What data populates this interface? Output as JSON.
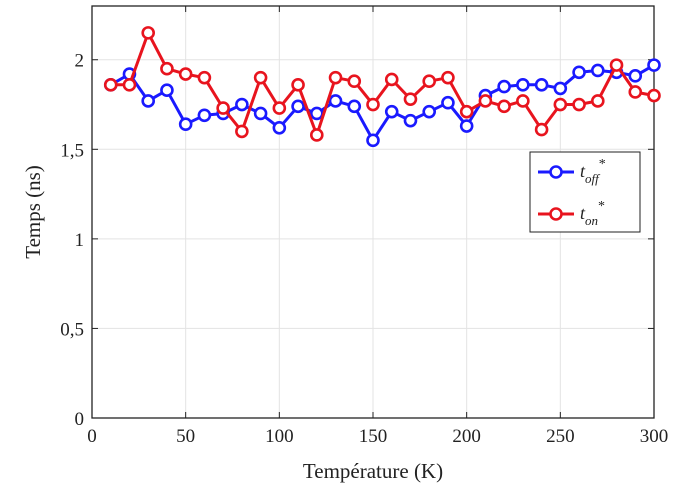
{
  "chart_data": {
    "type": "line",
    "title": "",
    "xlabel": "Température (K)",
    "ylabel": "Temps (ns)",
    "xlim": [
      0,
      300
    ],
    "ylim": [
      0,
      2.3
    ],
    "xticks": [
      0,
      50,
      100,
      150,
      200,
      250,
      300
    ],
    "xtick_labels": [
      "0",
      "50",
      "100",
      "150",
      "200",
      "250",
      "300"
    ],
    "yticks": [
      0,
      0.5,
      1,
      1.5,
      2
    ],
    "ytick_labels": [
      "0",
      "0,5",
      "1",
      "1,5",
      "2"
    ],
    "grid": true,
    "legend_position": "right",
    "x": [
      10,
      20,
      30,
      40,
      50,
      60,
      70,
      80,
      90,
      100,
      110,
      120,
      130,
      140,
      150,
      160,
      170,
      180,
      190,
      200,
      210,
      220,
      230,
      240,
      250,
      260,
      270,
      280,
      290,
      300
    ],
    "series": [
      {
        "key": "off",
        "legend_main": "t",
        "legend_sub": "off",
        "legend_sup": "*",
        "color": "#1a1aff",
        "values": [
          1.86,
          1.92,
          1.77,
          1.83,
          1.64,
          1.69,
          1.7,
          1.75,
          1.7,
          1.62,
          1.74,
          1.7,
          1.77,
          1.74,
          1.55,
          1.71,
          1.66,
          1.71,
          1.76,
          1.63,
          1.8,
          1.85,
          1.86,
          1.86,
          1.84,
          1.93,
          1.94,
          1.93,
          1.91,
          1.97
        ]
      },
      {
        "key": "on",
        "legend_main": "t",
        "legend_sub": "on",
        "legend_sup": "*",
        "color": "#e8141e",
        "values": [
          1.86,
          1.86,
          2.15,
          1.95,
          1.92,
          1.9,
          1.73,
          1.6,
          1.9,
          1.73,
          1.86,
          1.58,
          1.9,
          1.88,
          1.75,
          1.89,
          1.78,
          1.88,
          1.9,
          1.71,
          1.77,
          1.74,
          1.77,
          1.61,
          1.75,
          1.75,
          1.77,
          1.97,
          1.82,
          1.8
        ]
      }
    ]
  }
}
